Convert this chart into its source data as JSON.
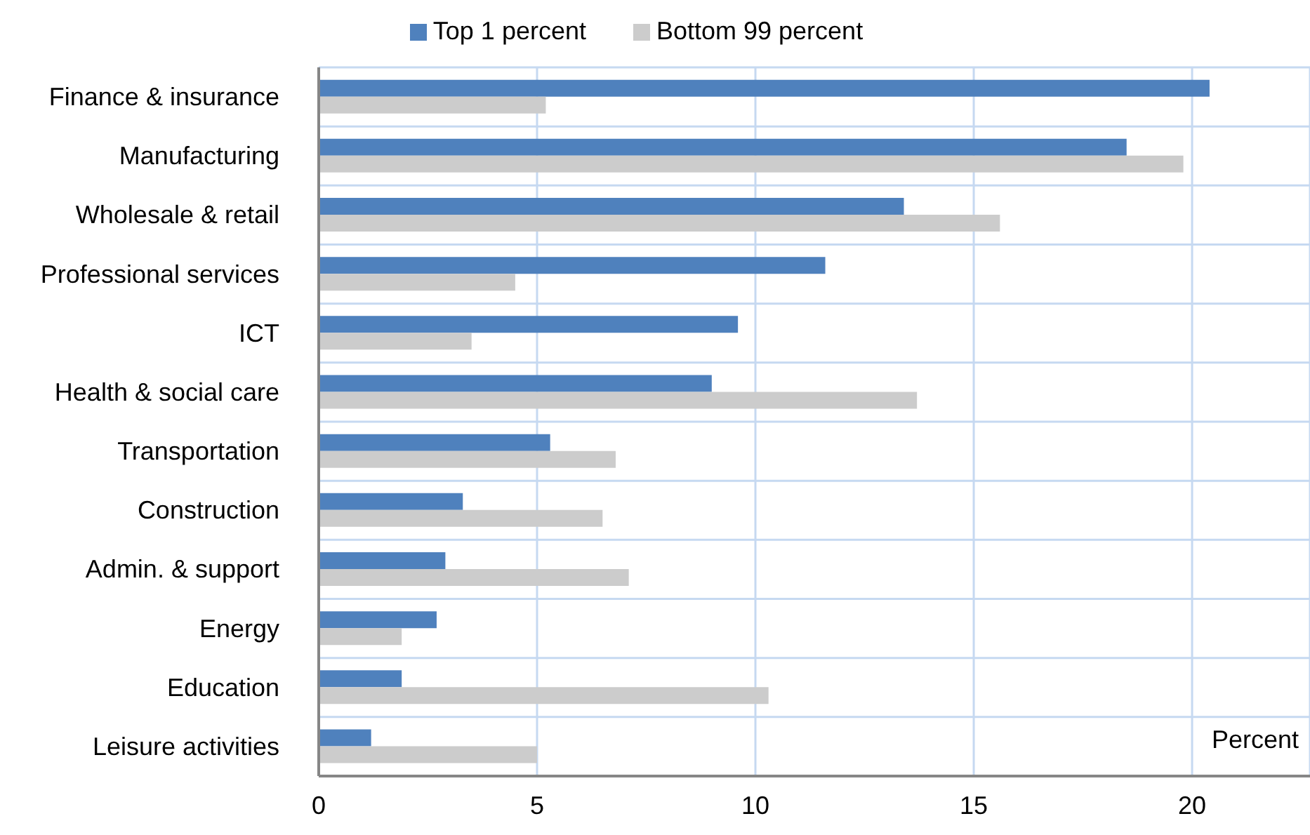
{
  "chart_data": {
    "type": "bar",
    "orientation": "horizontal",
    "xlabel": "Percent",
    "categories": [
      "Finance & insurance",
      "Manufacturing",
      "Wholesale & retail",
      "Professional services",
      "ICT",
      "Health & social care",
      "Transportation",
      "Construction",
      "Admin. & support",
      "Energy",
      "Education",
      "Leisure activities"
    ],
    "series": [
      {
        "name": "Top 1 percent",
        "color": "#4f81bd",
        "values": [
          20.4,
          18.5,
          13.4,
          11.6,
          9.6,
          9.0,
          5.3,
          3.3,
          2.9,
          2.7,
          1.9,
          1.2
        ]
      },
      {
        "name": "Bottom 99 percent",
        "color": "#cccccc",
        "values": [
          5.2,
          19.8,
          15.6,
          4.5,
          3.5,
          13.7,
          6.8,
          6.5,
          7.1,
          1.9,
          10.3,
          5.0
        ]
      }
    ],
    "xlim": [
      0,
      22.7
    ],
    "xticks": [
      0,
      5,
      10,
      15,
      20
    ],
    "grid": true,
    "legend": "top"
  }
}
